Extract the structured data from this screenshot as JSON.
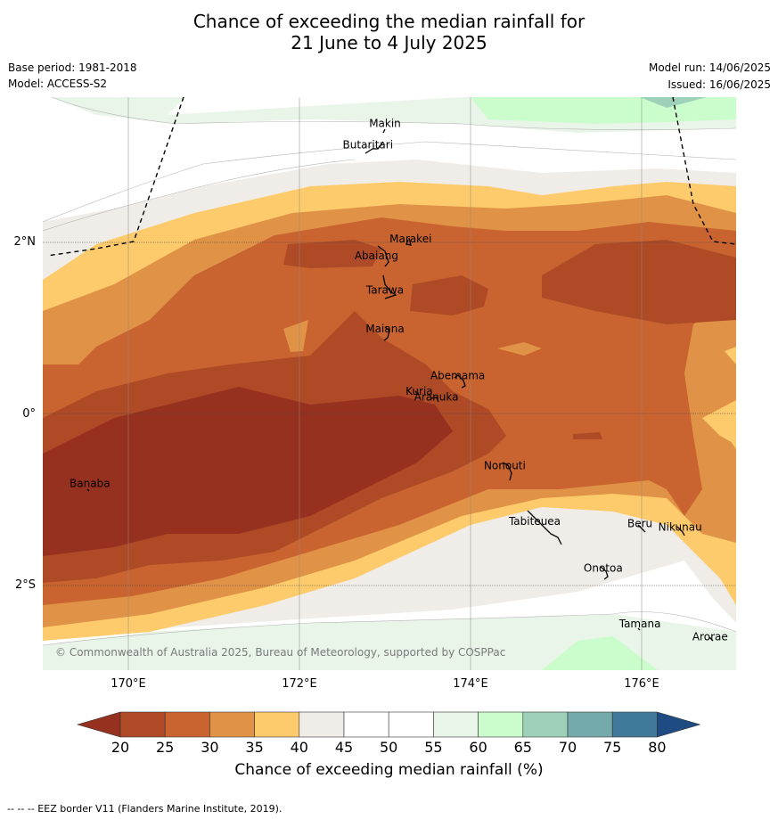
{
  "title_line1": "Chance of exceeding the median rainfall for",
  "title_line2": "21 June to 4 July 2025",
  "base_period": "Base period: 1981-2018",
  "model": "Model: ACCESS-S2",
  "model_run": "Model run: 14/06/2025",
  "issued": "Issued: 16/06/2025",
  "copyright": "© Commonwealth of Australia 2025, Bureau of Meteorology, supported by COSPPac",
  "lat_labels": [
    "2°N",
    "0°",
    "2°S"
  ],
  "lon_labels": [
    "170°E",
    "172°E",
    "174°E",
    "176°E"
  ],
  "places": [
    {
      "name": "Makin",
      "lon": 173.0,
      "lat": 3.35
    },
    {
      "name": "Butaritari",
      "lon": 172.8,
      "lat": 3.1
    },
    {
      "name": "Marakei",
      "lon": 173.3,
      "lat": 2.0
    },
    {
      "name": "Abaiang",
      "lon": 172.9,
      "lat": 1.8
    },
    {
      "name": "Tarawa",
      "lon": 173.0,
      "lat": 1.4
    },
    {
      "name": "Maiana",
      "lon": 173.0,
      "lat": 0.95
    },
    {
      "name": "Abemama",
      "lon": 173.85,
      "lat": 0.4
    },
    {
      "name": "Kuria",
      "lon": 173.4,
      "lat": 0.22
    },
    {
      "name": "Aranuka",
      "lon": 173.6,
      "lat": 0.15
    },
    {
      "name": "Banaba",
      "lon": 169.55,
      "lat": -0.86
    },
    {
      "name": "Nonouti",
      "lon": 174.4,
      "lat": -0.65
    },
    {
      "name": "Tabiteuea",
      "lon": 174.75,
      "lat": -1.3
    },
    {
      "name": "Beru",
      "lon": 175.98,
      "lat": -1.33
    },
    {
      "name": "Nikunau",
      "lon": 176.45,
      "lat": -1.37
    },
    {
      "name": "Onotoa",
      "lon": 175.55,
      "lat": -1.85
    },
    {
      "name": "Tamana",
      "lon": 175.98,
      "lat": -2.5
    },
    {
      "name": "Arorae",
      "lon": 176.8,
      "lat": -2.65
    }
  ],
  "colorbar": {
    "ticks": [
      "20",
      "25",
      "30",
      "35",
      "40",
      "45",
      "50",
      "55",
      "60",
      "65",
      "70",
      "75",
      "80"
    ],
    "colors": [
      "#97311f",
      "#ae4a26",
      "#c96430",
      "#e09347",
      "#fdcb6b",
      "#f0ede8",
      "#ffffff",
      "#ffffff",
      "#e9f5e9",
      "#cbfccb",
      "#9dd1b9",
      "#74aaa9",
      "#41799a",
      "#1e4c82"
    ],
    "label": "Chance of exceeding median rainfall (%)"
  },
  "footnote": "--  --  -- EEZ border V11 (Flanders Marine Institute, 2019)."
}
